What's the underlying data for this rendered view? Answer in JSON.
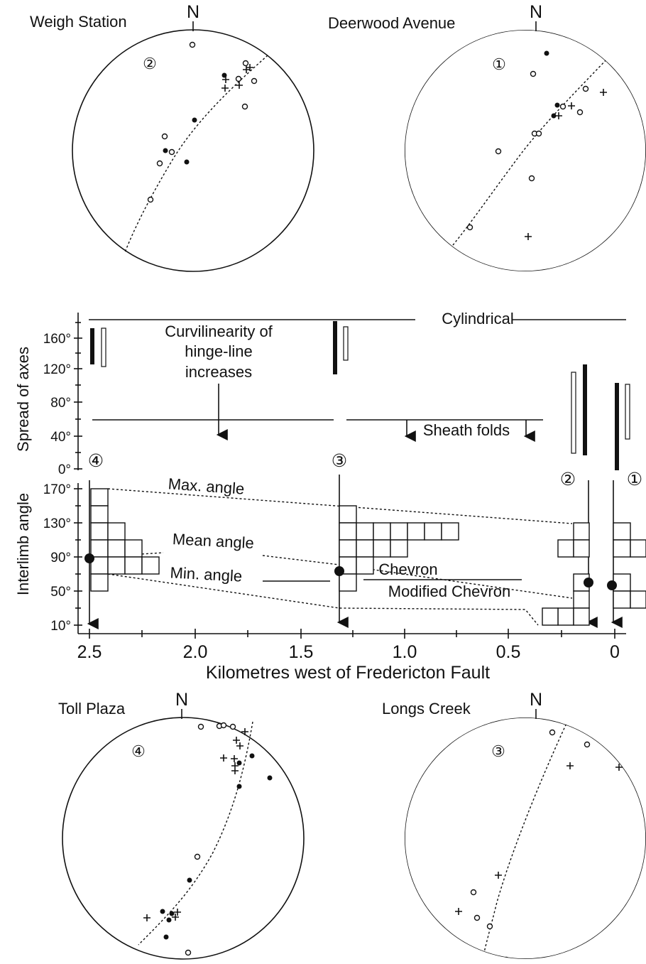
{
  "stereonets": {
    "north_label": "N",
    "weigh": {
      "title": "Weigh Station",
      "num": "②"
    },
    "deerwood": {
      "title": "Deerwood Avenue",
      "num": "①"
    },
    "toll": {
      "title": "Toll Plaza",
      "num": "④"
    },
    "longs": {
      "title": "Longs Creek",
      "num": "③"
    }
  },
  "top_panel": {
    "ylabel": "Spread of axes",
    "ticks": [
      "160°",
      "120°",
      "80°",
      "40°",
      "0°"
    ],
    "cylindrical": "Cylindrical",
    "curvilinearity": [
      "Curvilinearity of",
      "hinge-line",
      "increases"
    ],
    "sheath": "Sheath folds"
  },
  "bottom_panel": {
    "ylabel": "Interlimb angle",
    "ticks": [
      "170°",
      "130°",
      "90°",
      "50°",
      "10°"
    ],
    "max_angle": "Max. angle",
    "mean_angle": "Mean angle",
    "min_angle": "Min. angle",
    "chevron": "Chevron",
    "modified_chevron": "Modified Chevron"
  },
  "x_axis": {
    "label": "Kilometres west of Fredericton Fault",
    "ticks": [
      "2.5",
      "2.0",
      "1.5",
      "1.0",
      "0.5",
      "0"
    ]
  },
  "station_markers": {
    "s4": "④",
    "s3": "③",
    "s2": "②",
    "s1": "①"
  }
}
